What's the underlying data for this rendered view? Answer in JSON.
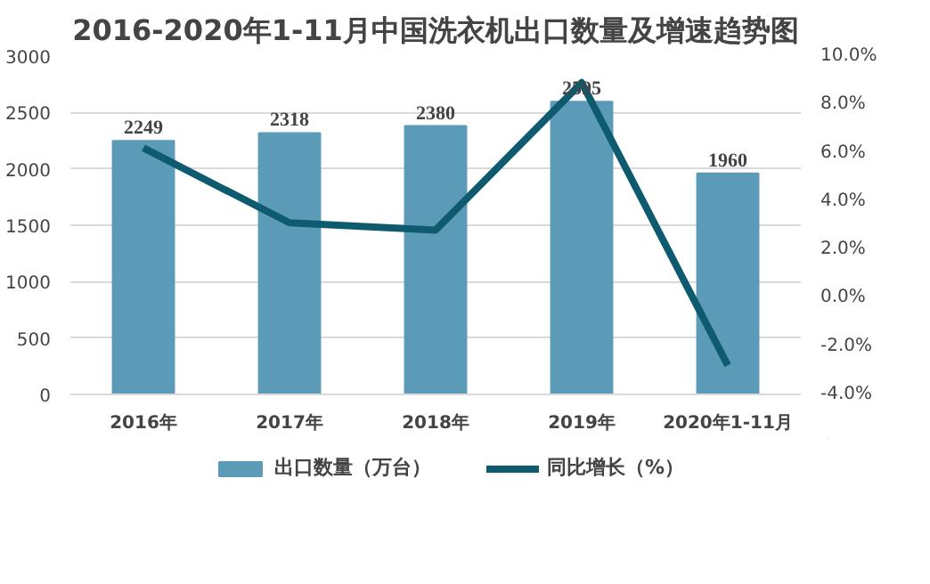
{
  "chart_data": {
    "type": "bar",
    "title": "2016-2020年1-11月中国洗衣机出口数量及增速趋势图",
    "categories": [
      "2016年",
      "2017年",
      "2018年",
      "2019年",
      "2020年1-11月"
    ],
    "series": [
      {
        "name": "出口数量（万台）",
        "color": "#5b9bb8",
        "values": [
          2249,
          2318,
          2380,
          2595,
          1960
        ],
        "data_labels": true
      },
      {
        "name": "同比增长（%）",
        "type": "line",
        "axis": "y2",
        "color": "#0e5a6e",
        "values": [
          6.2,
          3.1,
          2.8,
          8.9,
          -2.8
        ]
      }
    ],
    "ylim": [
      0,
      3000
    ],
    "yticks": [
      0,
      500,
      1000,
      1500,
      2000,
      2500,
      3000
    ],
    "y2lim": [
      -4,
      10
    ],
    "y2ticks": [
      {
        "value": -4,
        "label": "-4.0%"
      },
      {
        "value": -2,
        "label": "-2.0%"
      },
      {
        "value": 0,
        "label": "0.0%"
      },
      {
        "value": 2,
        "label": "2.0%"
      },
      {
        "value": 4,
        "label": "4.0%"
      },
      {
        "value": 6,
        "label": "6.0%"
      },
      {
        "value": 8,
        "label": "8.0%"
      },
      {
        "value": 10,
        "label": "10.0%"
      }
    ],
    "grid": "y",
    "legend": "bottom",
    "marker": "none"
  }
}
